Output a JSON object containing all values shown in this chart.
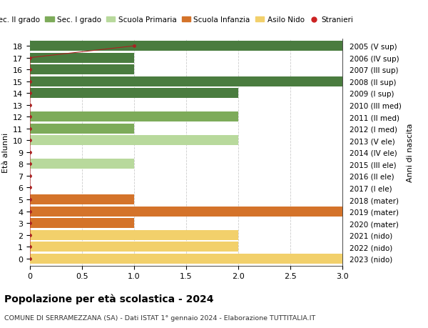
{
  "ages": [
    18,
    17,
    16,
    15,
    14,
    13,
    12,
    11,
    10,
    9,
    8,
    7,
    6,
    5,
    4,
    3,
    2,
    1,
    0
  ],
  "years": [
    "2005 (V sup)",
    "2006 (IV sup)",
    "2007 (III sup)",
    "2008 (II sup)",
    "2009 (I sup)",
    "2010 (III med)",
    "2011 (II med)",
    "2012 (I med)",
    "2013 (V ele)",
    "2014 (IV ele)",
    "2015 (III ele)",
    "2016 (II ele)",
    "2017 (I ele)",
    "2018 (mater)",
    "2019 (mater)",
    "2020 (mater)",
    "2021 (nido)",
    "2022 (nido)",
    "2023 (nido)"
  ],
  "values": [
    3,
    1,
    1,
    3,
    2,
    0,
    2,
    1,
    2,
    0,
    1,
    0,
    0,
    1,
    3,
    1,
    2,
    2,
    3
  ],
  "stranieri_x": [
    1,
    0,
    0,
    0,
    0,
    0,
    0,
    0,
    0,
    0,
    0,
    0,
    0,
    0,
    0,
    0,
    0,
    0,
    0
  ],
  "colors": {
    "Sec. II grado": "#4a7c3f",
    "Sec. I grado": "#7dab5a",
    "Scuola Primaria": "#b8d99c",
    "Scuola Infanzia": "#d4732a",
    "Asilo Nido": "#f2d06b",
    "Stranieri": "#cc2222"
  },
  "title": "Popolazione per età scolastica - 2024",
  "subtitle": "COMUNE DI SERRAMEZZANA (SA) - Dati ISTAT 1° gennaio 2024 - Elaborazione TUTTITALIA.IT",
  "ylabel_left": "Età alunni",
  "ylabel_right": "Anni di nascita",
  "xlim": [
    0,
    3.0
  ],
  "bg_color": "#ffffff",
  "grid_color": "#cccccc",
  "bar_height": 0.85,
  "stranieri_color": "#aa2222"
}
